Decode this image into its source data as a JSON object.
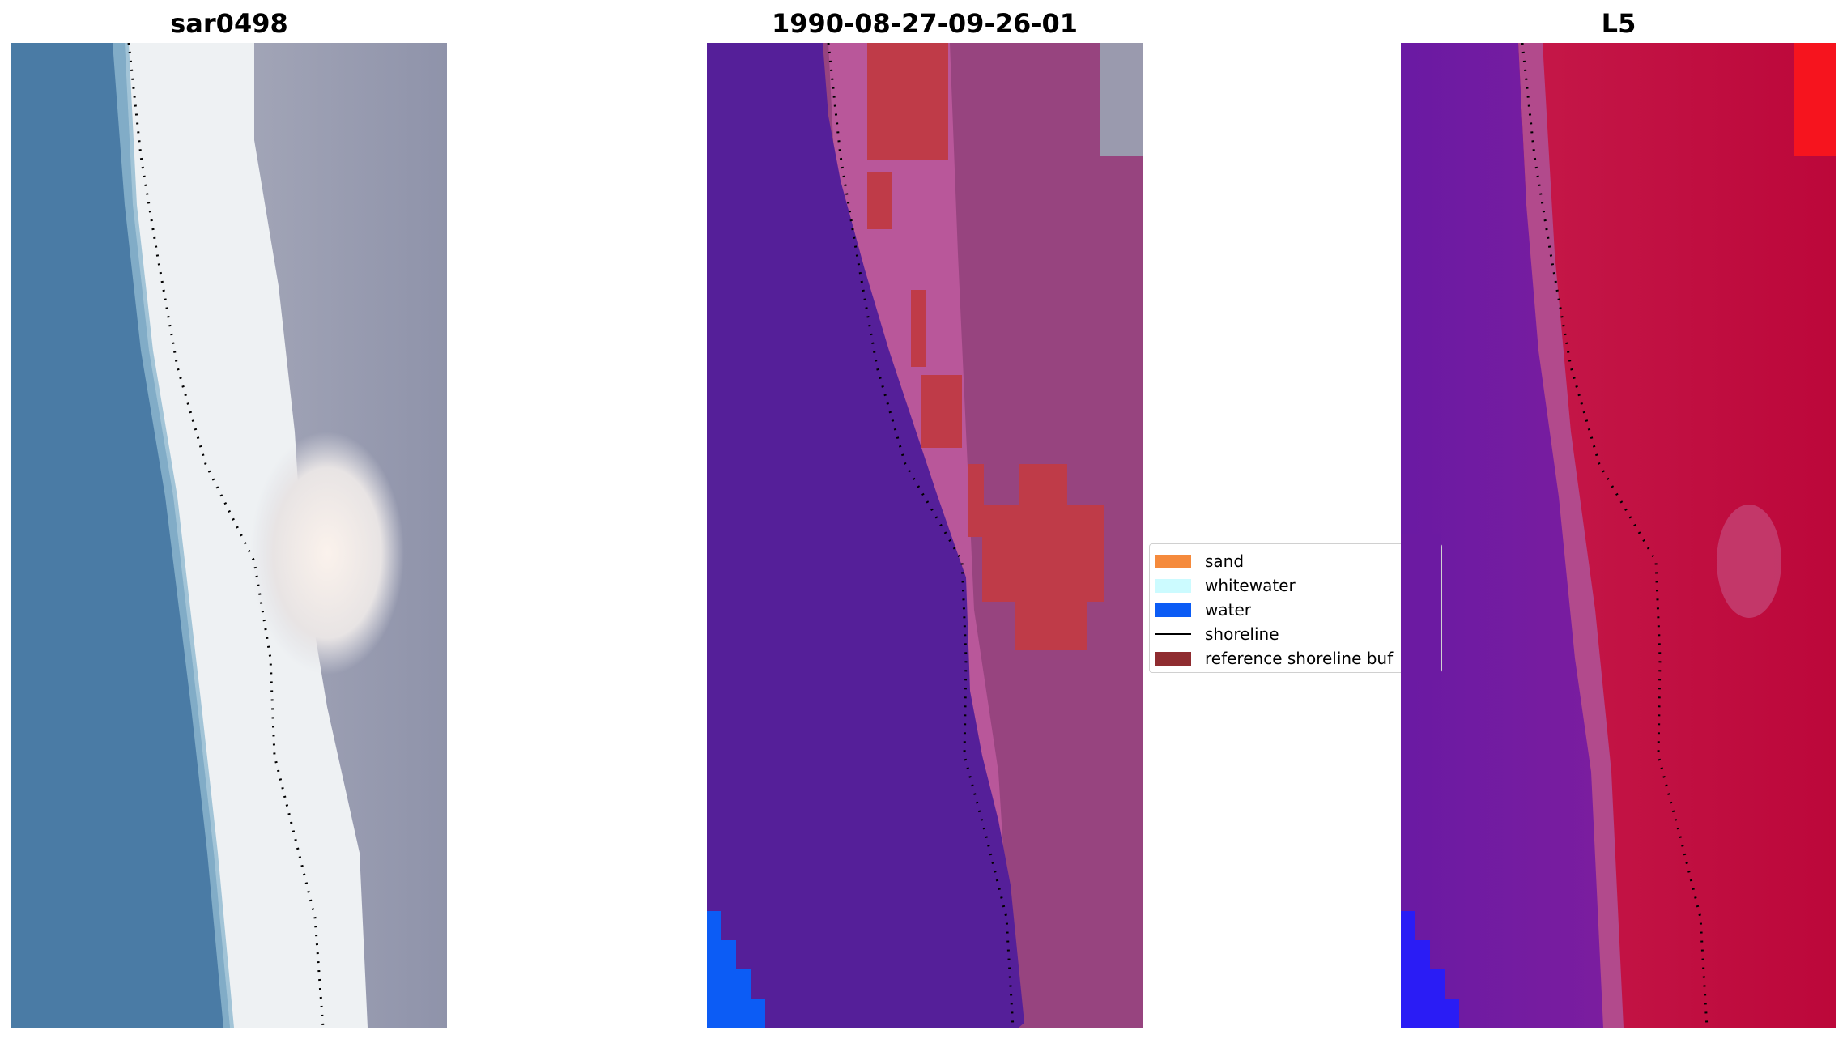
{
  "panels": [
    {
      "title": "sar0498"
    },
    {
      "title": "1990-08-27-09-26-01"
    },
    {
      "title": "L5"
    }
  ],
  "legend": {
    "items": [
      {
        "label": "sand",
        "color": "#f58a3c",
        "kind": "patch"
      },
      {
        "label": "whitewater",
        "color": "#ccfbff",
        "kind": "patch"
      },
      {
        "label": "water",
        "color": "#0b5cf5",
        "kind": "patch"
      },
      {
        "label": "shoreline",
        "color": "#000000",
        "kind": "line"
      },
      {
        "label": "reference shoreline buf",
        "color": "#8f2c30",
        "kind": "patch"
      }
    ]
  },
  "colors": {
    "rgb_water": "#4a7ba5",
    "rgb_whitewater": "#f2f4f4",
    "rgb_land": "#9a9eb0",
    "class_water": "#55209a",
    "class_sand": "#9a4580",
    "class_buffer": "#be3a4a",
    "index_water": "#6a1aa0",
    "index_land": "#c20a3e"
  }
}
